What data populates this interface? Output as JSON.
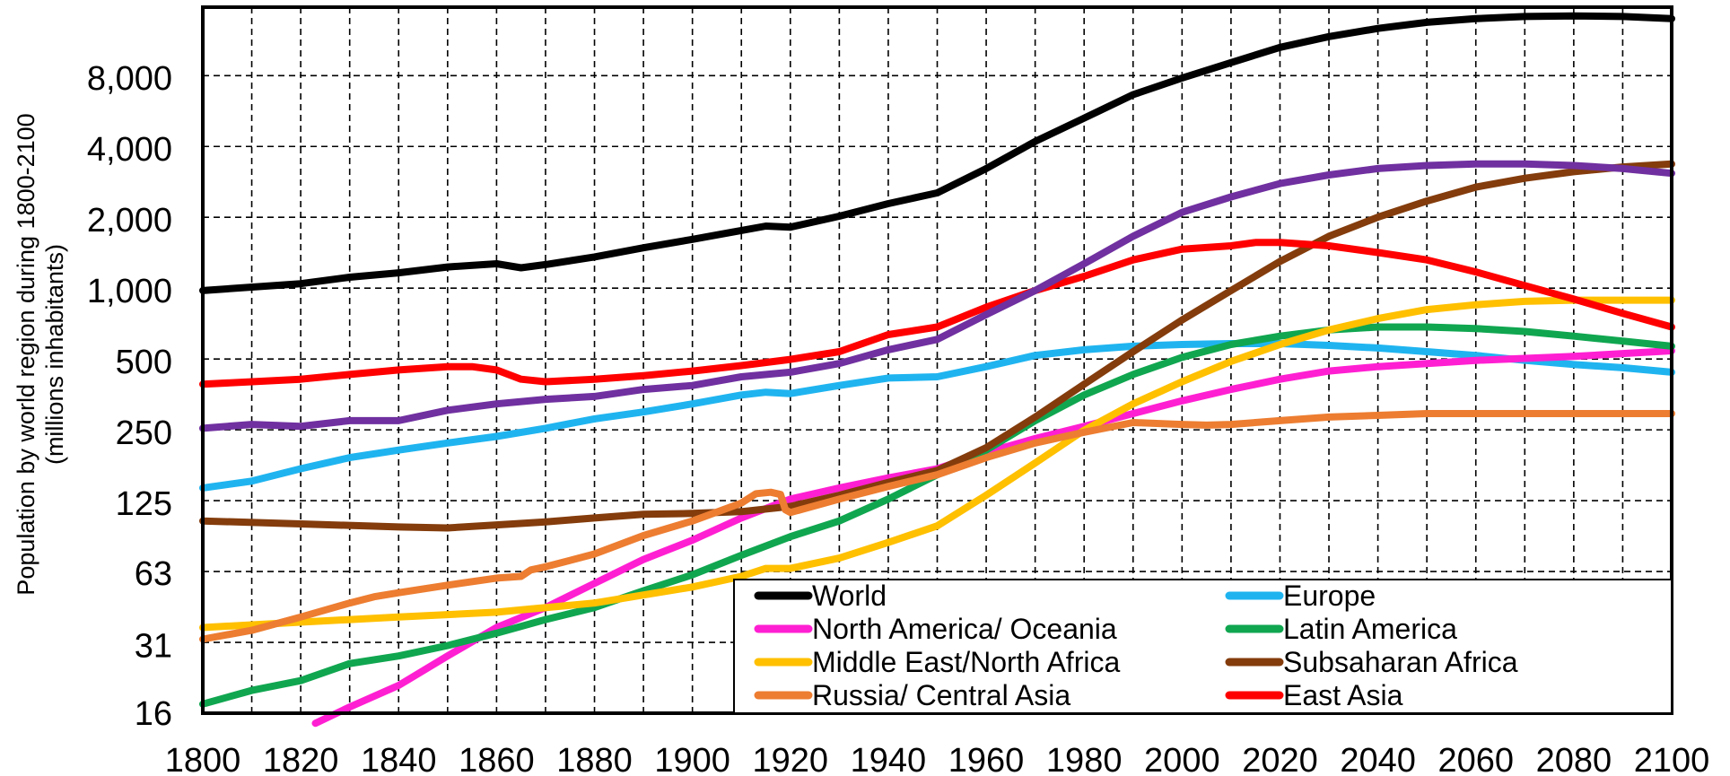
{
  "chart_data": {
    "type": "line",
    "title": "",
    "ylabel_lines": [
      "Population by world region during 1800-2100",
      "(millions inhabitants)"
    ],
    "xlabel": "",
    "y_scale": "log",
    "xlim": [
      1800,
      2100
    ],
    "ylim": [
      16,
      16000
    ],
    "x_ticks": [
      "1800",
      "1820",
      "1840",
      "1860",
      "1880",
      "1900",
      "1920",
      "1940",
      "1960",
      "1980",
      "2000",
      "2020",
      "2040",
      "2060",
      "2080",
      "2100"
    ],
    "y_ticks": [
      {
        "value": 16,
        "label": "16"
      },
      {
        "value": 31,
        "label": "31"
      },
      {
        "value": 63,
        "label": "63"
      },
      {
        "value": 125,
        "label": "125"
      },
      {
        "value": 250,
        "label": "250"
      },
      {
        "value": 500,
        "label": "500"
      },
      {
        "value": 1000,
        "label": "1,000"
      },
      {
        "value": 2000,
        "label": "2,000"
      },
      {
        "value": 4000,
        "label": "4,000"
      },
      {
        "value": 8000,
        "label": "8,000"
      }
    ],
    "grid": true,
    "legend_position": "bottom-right",
    "series": [
      {
        "name": "World",
        "color": "#000000",
        "x": [
          1800,
          1820,
          1830,
          1840,
          1850,
          1860,
          1865,
          1870,
          1880,
          1890,
          1900,
          1910,
          1915,
          1920,
          1930,
          1940,
          1950,
          1960,
          1970,
          1980,
          1990,
          2000,
          2010,
          2020,
          2030,
          2040,
          2050,
          2060,
          2070,
          2080,
          2090,
          2100
        ],
        "y": [
          1000,
          1070,
          1140,
          1190,
          1260,
          1300,
          1250,
          1290,
          1390,
          1520,
          1650,
          1800,
          1880,
          1860,
          2070,
          2340,
          2600,
          3300,
          4300,
          5400,
          6800,
          8000,
          9300,
          10800,
          12000,
          13000,
          13800,
          14300,
          14600,
          14700,
          14600,
          14300
        ]
      },
      {
        "name": "Europe",
        "color": "#1fb4f0",
        "x": [
          1800,
          1810,
          1820,
          1830,
          1840,
          1850,
          1860,
          1870,
          1880,
          1890,
          1900,
          1910,
          1915,
          1920,
          1930,
          1940,
          1950,
          1960,
          1970,
          1980,
          1990,
          2000,
          2010,
          2020,
          2030,
          2040,
          2050,
          2060,
          2070,
          2080,
          2090,
          2100
        ],
        "y": [
          145,
          155,
          175,
          195,
          210,
          225,
          240,
          260,
          285,
          305,
          330,
          360,
          370,
          365,
          395,
          425,
          430,
          475,
          530,
          560,
          580,
          590,
          595,
          595,
          585,
          570,
          550,
          530,
          505,
          485,
          470,
          450
        ]
      },
      {
        "name": "North America/ Oceania",
        "color": "#ff1fd2",
        "x": [
          1823,
          1830,
          1840,
          1850,
          1860,
          1870,
          1880,
          1890,
          1900,
          1910,
          1920,
          1930,
          1940,
          1950,
          1960,
          1970,
          1980,
          1990,
          2000,
          2010,
          2020,
          2030,
          2040,
          2050,
          2060,
          2070,
          2080,
          2090,
          2100
        ],
        "y": [
          14.5,
          17,
          21,
          28,
          37,
          45,
          57,
          72,
          87,
          108,
          130,
          145,
          160,
          175,
          205,
          235,
          265,
          300,
          340,
          380,
          420,
          455,
          475,
          490,
          505,
          515,
          525,
          540,
          555
        ]
      },
      {
        "name": "Latin America",
        "color": "#10a650",
        "x": [
          1800,
          1810,
          1820,
          1830,
          1840,
          1850,
          1860,
          1870,
          1880,
          1890,
          1900,
          1910,
          1920,
          1930,
          1940,
          1950,
          1960,
          1970,
          1980,
          1990,
          2000,
          2010,
          2020,
          2030,
          2040,
          2050,
          2060,
          2070,
          2080,
          2090,
          2100
        ],
        "y": [
          17.5,
          20,
          22,
          26,
          28,
          31,
          35,
          40,
          45,
          53,
          62,
          75,
          90,
          105,
          130,
          165,
          210,
          280,
          360,
          440,
          520,
          590,
          640,
          680,
          700,
          700,
          690,
          670,
          640,
          610,
          580
        ]
      },
      {
        "name": "Middle East/North Africa",
        "color": "#ffc000",
        "x": [
          1800,
          1820,
          1840,
          1860,
          1880,
          1900,
          1910,
          1915,
          1920,
          1930,
          1940,
          1950,
          1960,
          1970,
          1980,
          1990,
          2000,
          2010,
          2020,
          2030,
          2040,
          2050,
          2060,
          2070,
          2080,
          2090,
          2100
        ],
        "y": [
          37,
          39,
          41,
          43,
          47,
          55,
          61,
          66,
          66,
          73,
          85,
          100,
          135,
          185,
          255,
          330,
          410,
          500,
          590,
          680,
          760,
          830,
          870,
          900,
          910,
          910,
          910
        ]
      },
      {
        "name": "Subsaharan Africa",
        "color": "#843c0c",
        "x": [
          1800,
          1820,
          1840,
          1850,
          1860,
          1870,
          1880,
          1890,
          1900,
          1910,
          1920,
          1930,
          1940,
          1950,
          1960,
          1970,
          1980,
          1990,
          2000,
          2010,
          2020,
          2030,
          2040,
          2050,
          2060,
          2070,
          2080,
          2090,
          2100
        ],
        "y": [
          105,
          102,
          99,
          98,
          101,
          104,
          108,
          112,
          113,
          115,
          121,
          135,
          153,
          172,
          215,
          290,
          400,
          550,
          750,
          1000,
          1330,
          1700,
          2050,
          2400,
          2750,
          3000,
          3200,
          3350,
          3450
        ]
      },
      {
        "name": "Russia/ Central Asia",
        "color": "#ed7d31",
        "x": [
          1800,
          1810,
          1820,
          1830,
          1835,
          1840,
          1850,
          1860,
          1865,
          1867,
          1870,
          1880,
          1890,
          1900,
          1910,
          1913,
          1916,
          1918,
          1919,
          1920,
          1930,
          1940,
          1950,
          1960,
          1970,
          1980,
          1990,
          2000,
          2005,
          2010,
          2020,
          2030,
          2040,
          2050,
          2060,
          2070,
          2080,
          2090,
          2100
        ],
        "y": [
          33,
          36,
          41,
          47,
          50,
          52,
          56,
          60,
          61,
          65,
          67,
          76,
          91,
          105,
          125,
          137,
          139,
          136,
          117,
          114,
          130,
          147,
          165,
          195,
          225,
          250,
          275,
          270,
          268,
          270,
          280,
          290,
          295,
          300,
          300,
          300,
          300,
          300,
          300
        ]
      },
      {
        "name": "East Asia",
        "color": "#ff0000",
        "x": [
          1800,
          1820,
          1830,
          1840,
          1850,
          1855,
          1860,
          1865,
          1870,
          1880,
          1890,
          1900,
          1910,
          1920,
          1930,
          1940,
          1950,
          1960,
          1970,
          1980,
          1990,
          2000,
          2010,
          2015,
          2020,
          2030,
          2040,
          2050,
          2060,
          2070,
          2080,
          2090,
          2100
        ],
        "y": [
          400,
          420,
          440,
          460,
          475,
          475,
          460,
          420,
          410,
          420,
          435,
          455,
          480,
          510,
          550,
          650,
          700,
          850,
          1000,
          1150,
          1350,
          1500,
          1550,
          1600,
          1600,
          1550,
          1450,
          1350,
          1200,
          1050,
          920,
          800,
          700
        ]
      },
      {
        "name": "_",
        "color": "#7030a0",
        "x": [
          1800,
          1810,
          1820,
          1830,
          1840,
          1850,
          1860,
          1870,
          1880,
          1890,
          1900,
          1910,
          1920,
          1930,
          1940,
          1950,
          1960,
          1970,
          1980,
          1990,
          2000,
          2010,
          2020,
          2030,
          2040,
          2050,
          2060,
          2070,
          2080,
          2090,
          2100
        ],
        "y": [
          260,
          270,
          265,
          280,
          280,
          310,
          330,
          345,
          355,
          380,
          395,
          430,
          450,
          490,
          560,
          620,
          790,
          1000,
          1300,
          1700,
          2150,
          2500,
          2850,
          3100,
          3300,
          3400,
          3450,
          3450,
          3400,
          3300,
          3150
        ]
      }
    ],
    "legend_order": [
      [
        "World",
        "Europe"
      ],
      [
        "North America/ Oceania",
        "Latin America"
      ],
      [
        "Middle East/North Africa",
        "Subsaharan Africa"
      ],
      [
        "Russia/ Central Asia",
        "East Asia"
      ]
    ]
  }
}
